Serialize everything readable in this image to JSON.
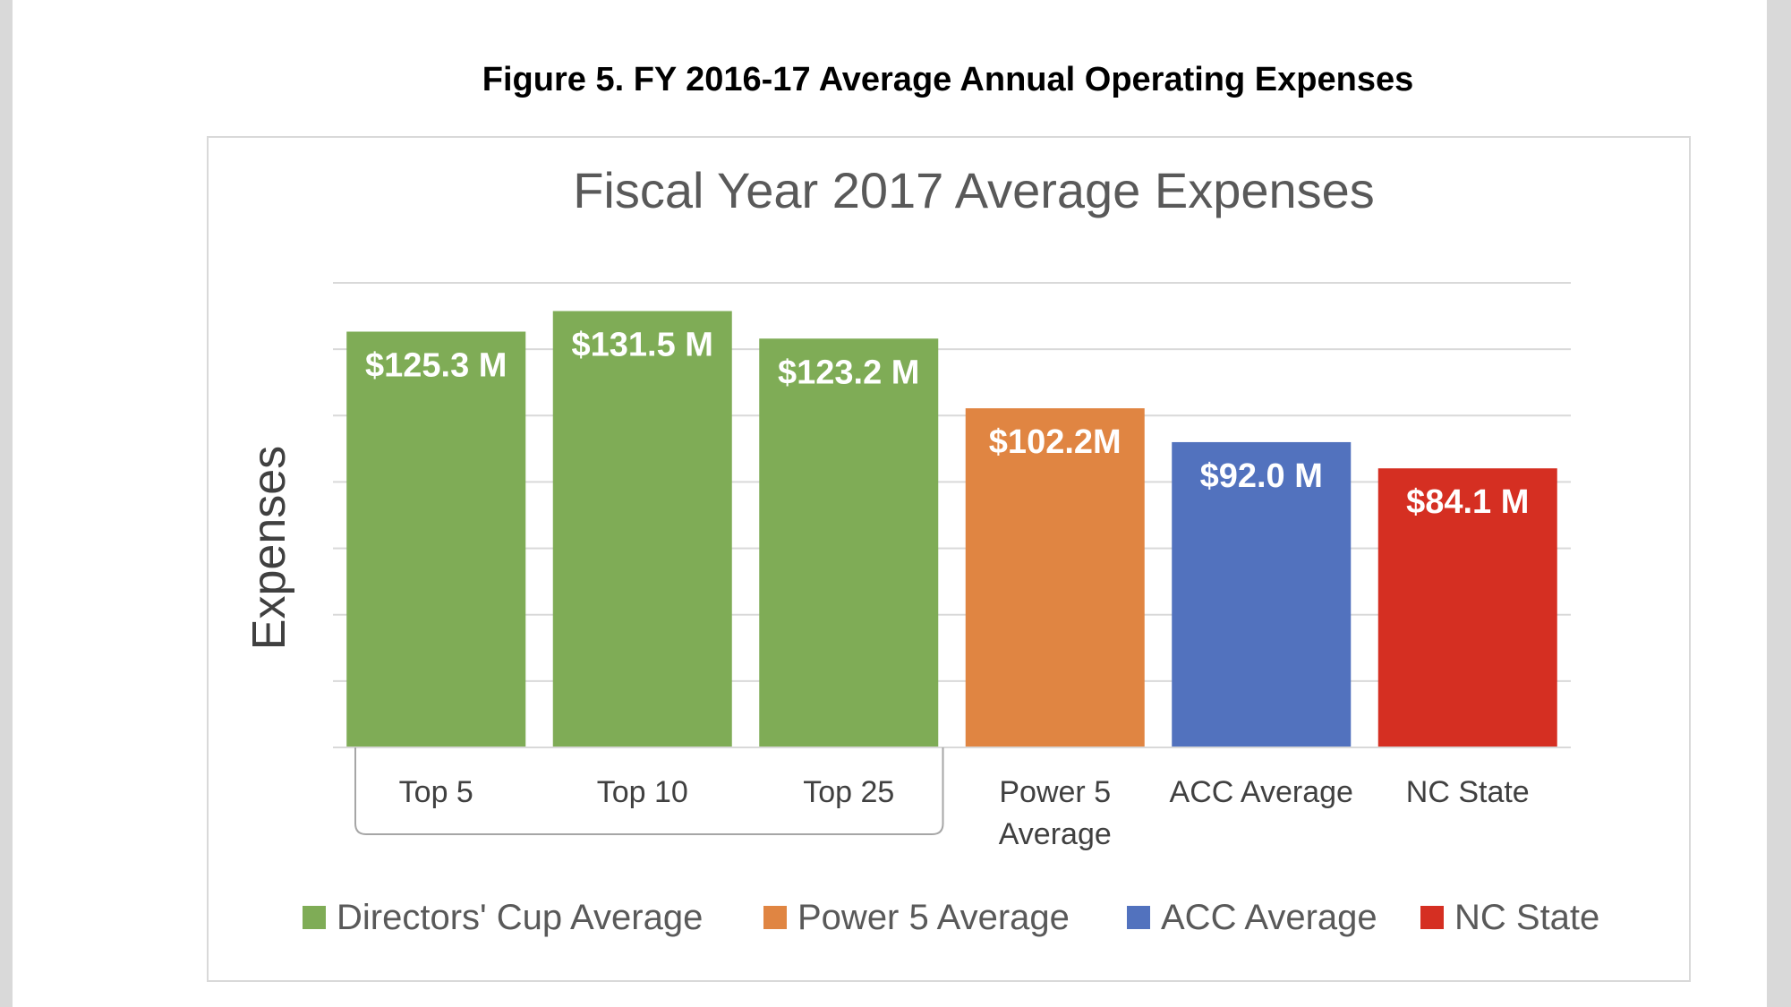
{
  "figure_title": "Figure 5. FY 2016-17 Average Annual Operating Expenses",
  "chart_data": {
    "type": "bar",
    "title": "Fiscal Year 2017 Average Expenses",
    "xlabel": "",
    "ylabel": "Expenses",
    "ylim": [
      0,
      140
    ],
    "grid": true,
    "legend_position": "bottom",
    "categories": [
      [
        "Top 5"
      ],
      [
        "Top 10"
      ],
      [
        "Top 25"
      ],
      [
        "Power 5",
        "Average"
      ],
      [
        "ACC Average"
      ],
      [
        "NC State"
      ]
    ],
    "category_group": {
      "label": "Directors' Cup Average",
      "members": [
        0,
        1,
        2
      ]
    },
    "values": [
      125.3,
      131.5,
      123.2,
      102.2,
      92.0,
      84.1
    ],
    "data_labels": [
      "$125.3 M",
      "$131.5 M",
      "$123.2 M",
      "$102.2M",
      "$92.0 M",
      "$84.1 M"
    ],
    "bar_series": [
      0,
      0,
      0,
      1,
      2,
      3
    ],
    "series": [
      {
        "name": "Directors' Cup Average",
        "color": "#7fac56"
      },
      {
        "name": "Power 5 Average",
        "color": "#e08542"
      },
      {
        "name": "ACC Average",
        "color": "#5272be"
      },
      {
        "name": "NC State",
        "color": "#d52f22"
      }
    ]
  }
}
